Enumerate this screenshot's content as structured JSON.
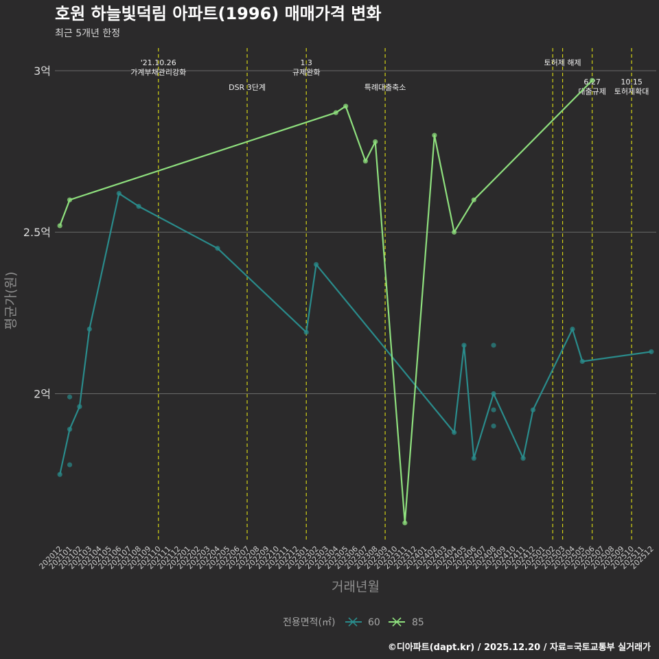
{
  "chart_data": {
    "type": "line",
    "title": "호원 하늘빛덕림 아파트(1996) 매매가격 변화",
    "subtitle": "최근 5개년 한정",
    "xlabel": "거래년월",
    "ylabel": "평균가(원)",
    "caption": "©디아파트(dapt.kr) / 2025.12.20 / 자료=국토교통부 실거래가",
    "categories": [
      "202012",
      "202101",
      "202102",
      "202103",
      "202104",
      "202105",
      "202106",
      "202107",
      "202108",
      "202109",
      "202110",
      "202111",
      "202112",
      "202201",
      "202202",
      "202203",
      "202204",
      "202205",
      "202206",
      "202207",
      "202208",
      "202209",
      "202210",
      "202211",
      "202212",
      "202301",
      "202302",
      "202303",
      "202304",
      "202305",
      "202306",
      "202307",
      "202308",
      "202309",
      "202310",
      "202311",
      "202312",
      "202401",
      "202402",
      "202403",
      "202404",
      "202405",
      "202406",
      "202407",
      "202408",
      "202409",
      "202410",
      "202411",
      "202412",
      "202501",
      "202502",
      "202503",
      "202504",
      "202505",
      "202506",
      "202507",
      "202508",
      "202509",
      "202510",
      "202511",
      "202512"
    ],
    "yticks": [
      {
        "value": 2.0,
        "label": "2억"
      },
      {
        "value": 2.5,
        "label": "2.5억"
      },
      {
        "value": 3.0,
        "label": "3억"
      }
    ],
    "ylim": [
      1.54,
      3.07
    ],
    "series": [
      {
        "name": "60",
        "color": "#2a8c8c",
        "points": [
          [
            "202012",
            1.75
          ],
          [
            "202101",
            1.89
          ],
          [
            "202102",
            1.96
          ],
          [
            "202103",
            2.2
          ],
          [
            "202106",
            2.62
          ],
          [
            "202108",
            2.58
          ],
          [
            "202204",
            2.45
          ],
          [
            "202301",
            2.19
          ],
          [
            "202302",
            2.4
          ],
          [
            "202404",
            1.88
          ],
          [
            "202405",
            2.15
          ],
          [
            "202406",
            1.8
          ],
          [
            "202408",
            2.0
          ],
          [
            "202411",
            1.8
          ],
          [
            "202412",
            1.95
          ],
          [
            "202504",
            2.2
          ],
          [
            "202505",
            2.1
          ],
          [
            "202512",
            2.13
          ]
        ],
        "extra_points": [
          [
            "202101",
            1.99
          ],
          [
            "202101",
            1.78
          ],
          [
            "202408",
            2.15
          ],
          [
            "202408",
            1.95
          ],
          [
            "202408",
            1.9
          ]
        ]
      },
      {
        "name": "85",
        "color": "#8fe07e",
        "points": [
          [
            "202012",
            2.52
          ],
          [
            "202101",
            2.6
          ],
          [
            "202304",
            2.87
          ],
          [
            "202305",
            2.89
          ],
          [
            "202307",
            2.72
          ],
          [
            "202308",
            2.78
          ],
          [
            "202311",
            1.6
          ],
          [
            "202402",
            2.8
          ],
          [
            "202404",
            2.5
          ],
          [
            "202406",
            2.6
          ],
          [
            "202506",
            2.97
          ]
        ],
        "extra_points": []
      }
    ],
    "events": [
      {
        "x": "202110",
        "lines": [
          "'21.10.26",
          "가계부채관리강화"
        ],
        "row": 0
      },
      {
        "x": "202207",
        "lines": [
          "DSR 3단계"
        ],
        "row": 1
      },
      {
        "x": "202301",
        "lines": [
          "1.3",
          "규제완화"
        ],
        "row": 0
      },
      {
        "x": "202309",
        "lines": [
          "특례대출축소"
        ],
        "row": 1
      },
      {
        "x": "202502",
        "lines": [],
        "row": 0
      },
      {
        "x": "202503",
        "lines": [
          "토허제 해제"
        ],
        "row": 0
      },
      {
        "x": "202506",
        "lines": [
          "6.27",
          "대출규제"
        ],
        "row": 2
      },
      {
        "x": "202510",
        "lines": [
          "10.15",
          "토허제확대"
        ],
        "row": 2
      }
    ],
    "legend": {
      "title": "전용면적(㎡)",
      "position": "bottom",
      "items": [
        "60",
        "85"
      ]
    }
  }
}
